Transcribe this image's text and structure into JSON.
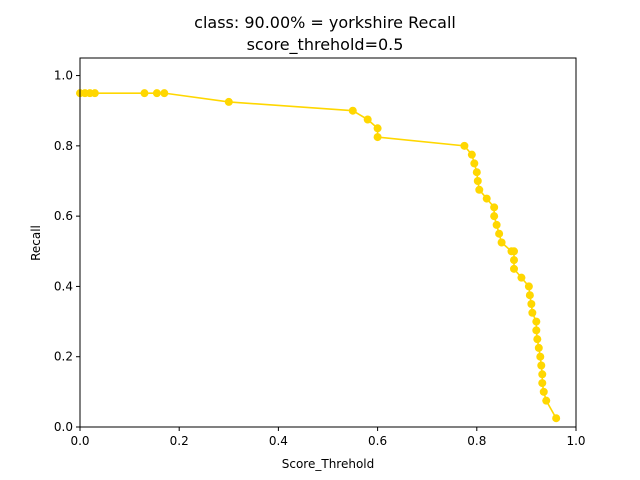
{
  "chart_data": {
    "type": "line",
    "title": "class: 90.00% = yorkshire Recall",
    "subtitle": "score_threhold=0.5",
    "xlabel": "Score_Threhold",
    "ylabel": "Recall",
    "xlim": [
      0.0,
      1.0
    ],
    "ylim": [
      0.0,
      1.05
    ],
    "xticks": [
      "0.0",
      "0.2",
      "0.4",
      "0.6",
      "0.8",
      "1.0"
    ],
    "yticks": [
      "0.0",
      "0.2",
      "0.4",
      "0.6",
      "0.8",
      "1.0"
    ],
    "grid": false,
    "line_color": "#FFD700",
    "series": [
      {
        "x": [
          0.0,
          0.01,
          0.02,
          0.03,
          0.13,
          0.155,
          0.17,
          0.3,
          0.55,
          0.58,
          0.6,
          0.6,
          0.775,
          0.79,
          0.795,
          0.8,
          0.802,
          0.805,
          0.82,
          0.835,
          0.835,
          0.84,
          0.845,
          0.85,
          0.87,
          0.875,
          0.875,
          0.875,
          0.89,
          0.905,
          0.907,
          0.91,
          0.912,
          0.92,
          0.92,
          0.922,
          0.925,
          0.928,
          0.93,
          0.932,
          0.932,
          0.935,
          0.94,
          0.96
        ],
        "y": [
          0.95,
          0.95,
          0.95,
          0.95,
          0.95,
          0.95,
          0.95,
          0.925,
          0.9,
          0.875,
          0.85,
          0.825,
          0.8,
          0.775,
          0.75,
          0.725,
          0.7,
          0.675,
          0.65,
          0.625,
          0.6,
          0.575,
          0.55,
          0.525,
          0.5,
          0.5,
          0.475,
          0.45,
          0.425,
          0.4,
          0.375,
          0.35,
          0.325,
          0.3,
          0.275,
          0.25,
          0.225,
          0.2,
          0.175,
          0.15,
          0.125,
          0.1,
          0.075,
          0.025
        ]
      }
    ]
  }
}
